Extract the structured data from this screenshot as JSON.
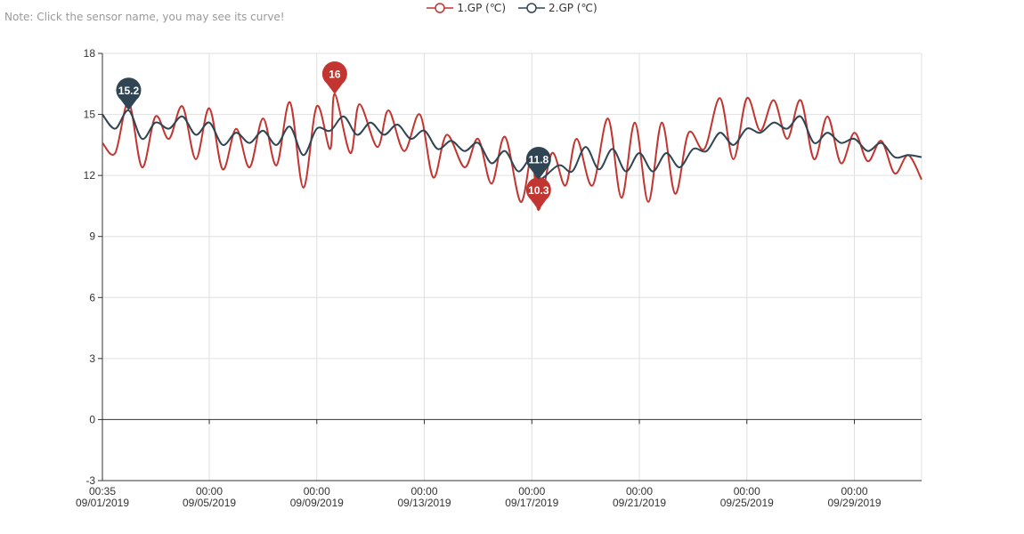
{
  "note": "Note: Click the sensor name, you may see its curve!",
  "chart_data": {
    "type": "line",
    "title": "",
    "xlabel": "",
    "ylabel": "",
    "x_start": "09/01/2019 00:35",
    "x_end": "10/01/2019 12:00",
    "ylim": [
      -3,
      18
    ],
    "yticks": [
      -3,
      0,
      3,
      6,
      9,
      12,
      15,
      18
    ],
    "xticks": [
      {
        "time": "00:35",
        "date": "09/01/2019"
      },
      {
        "time": "00:00",
        "date": "09/05/2019"
      },
      {
        "time": "00:00",
        "date": "09/09/2019"
      },
      {
        "time": "00:00",
        "date": "09/13/2019"
      },
      {
        "time": "00:00",
        "date": "09/17/2019"
      },
      {
        "time": "00:00",
        "date": "09/21/2019"
      },
      {
        "time": "00:00",
        "date": "09/25/2019"
      },
      {
        "time": "00:00",
        "date": "09/29/2019"
      }
    ],
    "grid": true,
    "legend_position": "top-center",
    "series": [
      {
        "name": "1.GP (℃)",
        "color": "#c23531",
        "points": [
          [
            "09/01/2019 00:35",
            13.6
          ],
          [
            "09/01/2019 12:00",
            13.1
          ],
          [
            "09/02/2019 00:00",
            15.6
          ],
          [
            "09/02/2019 12:00",
            12.4
          ],
          [
            "09/03/2019 00:00",
            14.9
          ],
          [
            "09/03/2019 12:00",
            13.8
          ],
          [
            "09/04/2019 00:00",
            15.4
          ],
          [
            "09/04/2019 12:00",
            12.8
          ],
          [
            "09/05/2019 00:00",
            15.3
          ],
          [
            "09/05/2019 12:00",
            12.3
          ],
          [
            "09/06/2019 00:00",
            14.3
          ],
          [
            "09/06/2019 12:00",
            12.4
          ],
          [
            "09/07/2019 00:00",
            14.8
          ],
          [
            "09/07/2019 12:00",
            12.5
          ],
          [
            "09/08/2019 00:00",
            15.6
          ],
          [
            "09/08/2019 12:00",
            11.4
          ],
          [
            "09/09/2019 00:00",
            15.4
          ],
          [
            "09/09/2019 12:00",
            13.3
          ],
          [
            "09/09/2019 16:00",
            16.0
          ],
          [
            "09/10/2019 06:00",
            13.1
          ],
          [
            "09/10/2019 14:00",
            15.5
          ],
          [
            "09/11/2019 06:00",
            13.4
          ],
          [
            "09/11/2019 16:00",
            15.2
          ],
          [
            "09/12/2019 06:00",
            13.2
          ],
          [
            "09/12/2019 20:00",
            15.0
          ],
          [
            "09/13/2019 08:00",
            11.9
          ],
          [
            "09/13/2019 20:00",
            14.0
          ],
          [
            "09/14/2019 12:00",
            12.4
          ],
          [
            "09/15/2019 00:00",
            13.8
          ],
          [
            "09/15/2019 12:00",
            11.6
          ],
          [
            "09/16/2019 00:00",
            13.9
          ],
          [
            "09/16/2019 14:00",
            10.7
          ],
          [
            "09/17/2019 00:00",
            13.0
          ],
          [
            "09/17/2019 06:00",
            10.3
          ],
          [
            "09/17/2019 18:00",
            13.1
          ],
          [
            "09/18/2019 06:00",
            11.5
          ],
          [
            "09/18/2019 16:00",
            13.8
          ],
          [
            "09/19/2019 06:00",
            11.5
          ],
          [
            "09/19/2019 20:00",
            14.8
          ],
          [
            "09/20/2019 08:00",
            10.9
          ],
          [
            "09/20/2019 20:00",
            14.6
          ],
          [
            "09/21/2019 08:00",
            10.7
          ],
          [
            "09/21/2019 20:00",
            14.6
          ],
          [
            "09/22/2019 08:00",
            11.1
          ],
          [
            "09/22/2019 20:00",
            14.1
          ],
          [
            "09/23/2019 10:00",
            13.3
          ],
          [
            "09/24/2019 00:00",
            15.8
          ],
          [
            "09/24/2019 12:00",
            12.8
          ],
          [
            "09/25/2019 00:00",
            15.8
          ],
          [
            "09/25/2019 12:00",
            14.2
          ],
          [
            "09/26/2019 00:00",
            15.7
          ],
          [
            "09/26/2019 12:00",
            13.8
          ],
          [
            "09/27/2019 00:00",
            15.7
          ],
          [
            "09/27/2019 12:00",
            12.8
          ],
          [
            "09/28/2019 00:00",
            14.9
          ],
          [
            "09/28/2019 12:00",
            12.6
          ],
          [
            "09/29/2019 00:00",
            14.1
          ],
          [
            "09/29/2019 12:00",
            12.7
          ],
          [
            "09/30/2019 00:00",
            13.7
          ],
          [
            "09/30/2019 12:00",
            12.1
          ],
          [
            "10/01/2019 00:00",
            13.0
          ],
          [
            "10/01/2019 12:00",
            11.8
          ]
        ],
        "markers": [
          {
            "label": "16",
            "x": "09/09/2019 16:00",
            "y": 16.0,
            "kind": "max"
          },
          {
            "label": "10.3",
            "x": "09/17/2019 06:00",
            "y": 10.3,
            "kind": "min"
          }
        ]
      },
      {
        "name": "2.GP (℃)",
        "color": "#2f4554",
        "points": [
          [
            "09/01/2019 00:35",
            15.0
          ],
          [
            "09/01/2019 12:00",
            14.3
          ],
          [
            "09/02/2019 00:00",
            15.2
          ],
          [
            "09/02/2019 12:00",
            13.8
          ],
          [
            "09/03/2019 00:00",
            14.6
          ],
          [
            "09/03/2019 12:00",
            14.3
          ],
          [
            "09/04/2019 00:00",
            14.9
          ],
          [
            "09/04/2019 12:00",
            14.0
          ],
          [
            "09/05/2019 00:00",
            14.6
          ],
          [
            "09/05/2019 12:00",
            13.5
          ],
          [
            "09/06/2019 00:00",
            14.1
          ],
          [
            "09/06/2019 12:00",
            13.6
          ],
          [
            "09/07/2019 00:00",
            14.2
          ],
          [
            "09/07/2019 12:00",
            13.5
          ],
          [
            "09/08/2019 00:00",
            14.4
          ],
          [
            "09/08/2019 12:00",
            13.0
          ],
          [
            "09/09/2019 00:00",
            14.3
          ],
          [
            "09/09/2019 12:00",
            14.2
          ],
          [
            "09/10/2019 00:00",
            14.9
          ],
          [
            "09/10/2019 12:00",
            14.0
          ],
          [
            "09/11/2019 00:00",
            14.6
          ],
          [
            "09/11/2019 12:00",
            14.0
          ],
          [
            "09/12/2019 00:00",
            14.5
          ],
          [
            "09/12/2019 12:00",
            13.8
          ],
          [
            "09/13/2019 00:00",
            14.2
          ],
          [
            "09/13/2019 12:00",
            13.3
          ],
          [
            "09/14/2019 00:00",
            13.7
          ],
          [
            "09/14/2019 12:00",
            13.2
          ],
          [
            "09/15/2019 00:00",
            13.6
          ],
          [
            "09/15/2019 12:00",
            12.6
          ],
          [
            "09/16/2019 00:00",
            13.2
          ],
          [
            "09/16/2019 12:00",
            12.2
          ],
          [
            "09/17/2019 00:00",
            12.9
          ],
          [
            "09/17/2019 06:00",
            11.8
          ],
          [
            "09/18/2019 00:00",
            12.5
          ],
          [
            "09/18/2019 12:00",
            12.2
          ],
          [
            "09/19/2019 00:00",
            13.4
          ],
          [
            "09/19/2019 12:00",
            12.3
          ],
          [
            "09/20/2019 00:00",
            13.3
          ],
          [
            "09/20/2019 12:00",
            12.2
          ],
          [
            "09/21/2019 00:00",
            13.1
          ],
          [
            "09/21/2019 12:00",
            12.2
          ],
          [
            "09/22/2019 00:00",
            13.1
          ],
          [
            "09/22/2019 12:00",
            12.4
          ],
          [
            "09/23/2019 00:00",
            13.3
          ],
          [
            "09/23/2019 12:00",
            13.2
          ],
          [
            "09/24/2019 00:00",
            14.1
          ],
          [
            "09/24/2019 12:00",
            13.5
          ],
          [
            "09/25/2019 00:00",
            14.3
          ],
          [
            "09/25/2019 12:00",
            14.1
          ],
          [
            "09/26/2019 00:00",
            14.6
          ],
          [
            "09/26/2019 12:00",
            14.3
          ],
          [
            "09/27/2019 00:00",
            14.9
          ],
          [
            "09/27/2019 12:00",
            13.6
          ],
          [
            "09/28/2019 00:00",
            14.1
          ],
          [
            "09/28/2019 12:00",
            13.6
          ],
          [
            "09/29/2019 00:00",
            13.8
          ],
          [
            "09/29/2019 12:00",
            13.2
          ],
          [
            "09/30/2019 00:00",
            13.6
          ],
          [
            "09/30/2019 12:00",
            12.9
          ],
          [
            "10/01/2019 00:00",
            13.0
          ],
          [
            "10/01/2019 12:00",
            12.9
          ]
        ],
        "markers": [
          {
            "label": "15.2",
            "x": "09/02/2019 00:00",
            "y": 15.2,
            "kind": "max"
          },
          {
            "label": "11.8",
            "x": "09/17/2019 06:00",
            "y": 11.8,
            "kind": "min"
          }
        ]
      }
    ]
  }
}
